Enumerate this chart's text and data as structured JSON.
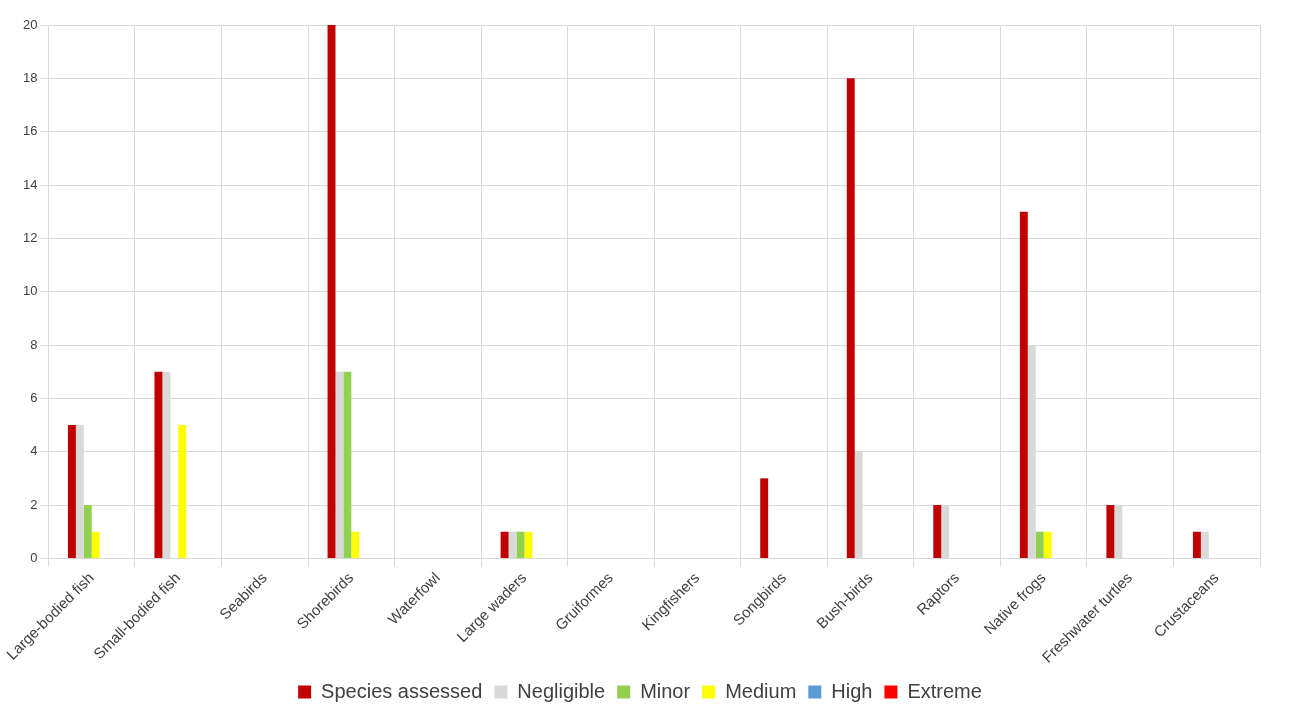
{
  "chart_data": {
    "type": "bar",
    "categories": [
      "Large-bodied fish",
      "Small-bodied fish",
      "Seabirds",
      "Shorebirds",
      "Waterfowl",
      "Large waders",
      "Gruiformes",
      "Kingfishers",
      "Songbirds",
      "Bush-birds",
      "Raptors",
      "Native frogs",
      "Freshwater turtles",
      "Crustaceans"
    ],
    "series": [
      {
        "name": "Species assessed",
        "color": "#c00000",
        "values": [
          5,
          7,
          0,
          20,
          0,
          1,
          0,
          0,
          3,
          18,
          2,
          13,
          2,
          1
        ]
      },
      {
        "name": "Negligible",
        "color": "#d9d9d9",
        "values": [
          5,
          7,
          0,
          7,
          0,
          1,
          0,
          0,
          0,
          4,
          2,
          8,
          2,
          1
        ]
      },
      {
        "name": "Minor",
        "color": "#92d050",
        "values": [
          2,
          0,
          0,
          7,
          0,
          1,
          0,
          0,
          0,
          0,
          0,
          1,
          0,
          0
        ]
      },
      {
        "name": "Medium",
        "color": "#ffff00",
        "values": [
          1,
          5,
          0,
          1,
          0,
          1,
          0,
          0,
          0,
          0,
          0,
          1,
          0,
          0
        ]
      },
      {
        "name": "High",
        "color": "#5b9bd5",
        "values": [
          0,
          0,
          0,
          0,
          0,
          0,
          0,
          0,
          0,
          0,
          0,
          0,
          0,
          0
        ]
      },
      {
        "name": "Extreme",
        "color": "#ff0000",
        "values": [
          0,
          0,
          0,
          0,
          0,
          0,
          0,
          0,
          0,
          0,
          0,
          0,
          0,
          0
        ]
      }
    ],
    "ylim": [
      0,
      20
    ],
    "yticks": [
      0,
      2,
      4,
      6,
      8,
      10,
      12,
      14,
      16,
      18,
      20
    ],
    "grid": true,
    "legend": "bottom"
  }
}
